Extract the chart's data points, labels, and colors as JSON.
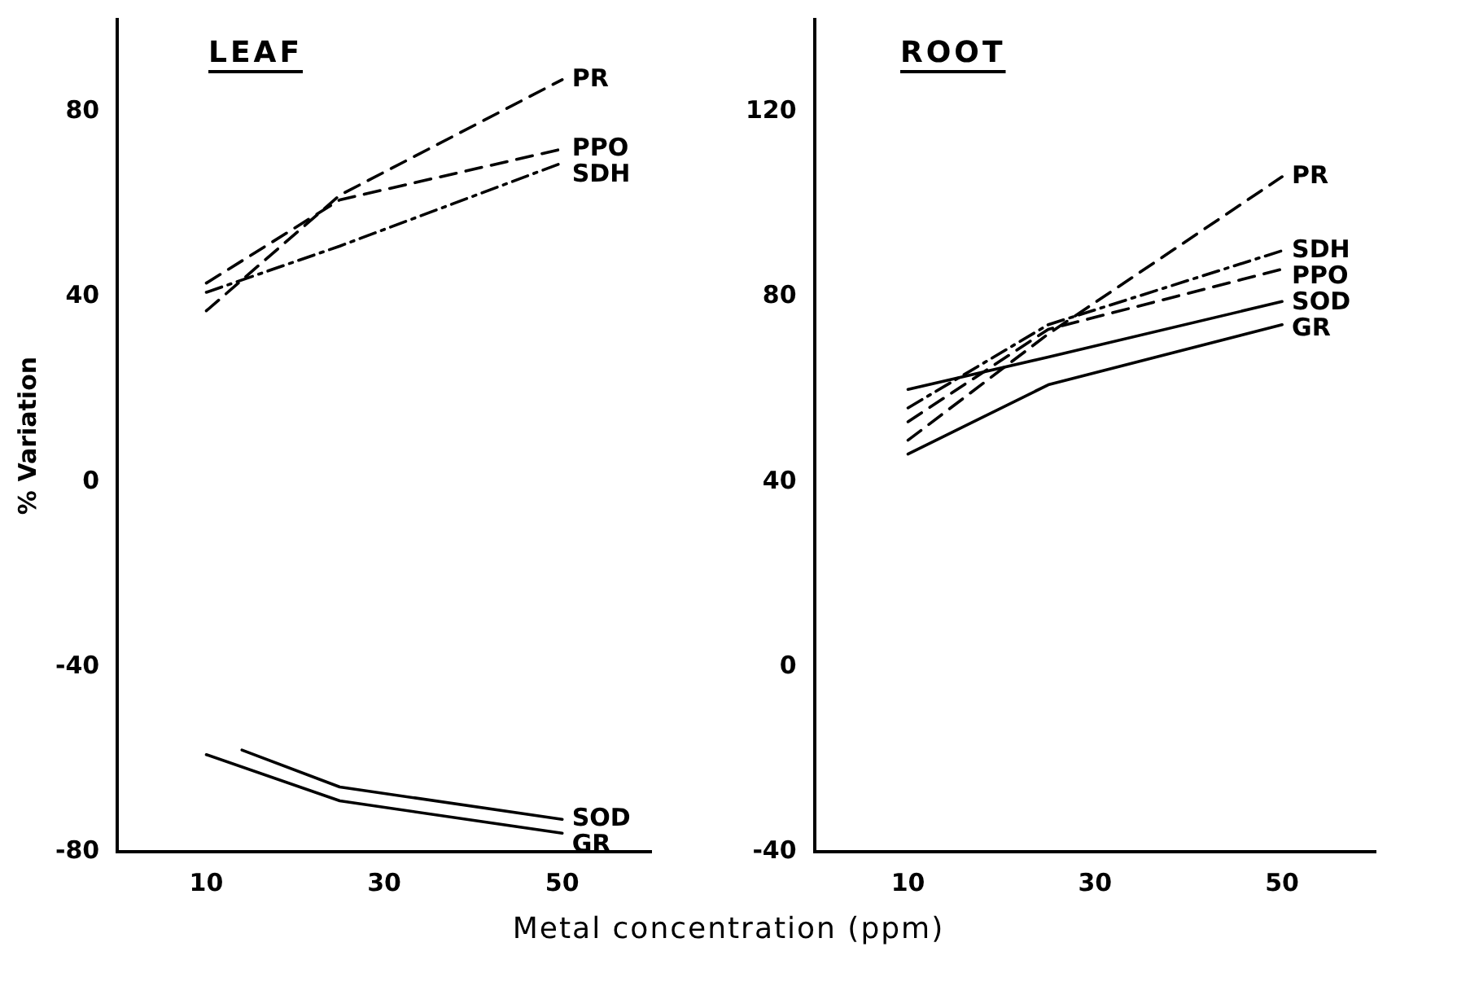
{
  "chart_data": [
    {
      "type": "line",
      "title": "LEAF",
      "ylabel": "% Variation",
      "xlabel": "Metal concentration (ppm)",
      "xlim": [
        0,
        60
      ],
      "xticks": [
        10,
        30,
        50
      ],
      "ylim": [
        -80,
        100
      ],
      "yticks": [
        -80,
        -40,
        0,
        40,
        80
      ],
      "grid": false,
      "legend": false,
      "marker": "none",
      "series": [
        {
          "name": "PR",
          "color": "#000000",
          "line_style": "dashed",
          "x": [
            10,
            25,
            50
          ],
          "values": [
            37,
            62,
            87
          ]
        },
        {
          "name": "PPO",
          "color": "#000000",
          "line_style": "dashed",
          "x": [
            10,
            25,
            50
          ],
          "values": [
            43,
            61,
            72
          ]
        },
        {
          "name": "SDH",
          "color": "#000000",
          "line_style": "dashdot",
          "x": [
            10,
            25,
            50
          ],
          "values": [
            41,
            51,
            69
          ]
        },
        {
          "name": "SOD",
          "color": "#000000",
          "line_style": "solid",
          "x": [
            14,
            25,
            50
          ],
          "values": [
            -58,
            -66,
            -73
          ]
        },
        {
          "name": "GR",
          "color": "#000000",
          "line_style": "solid",
          "x": [
            10,
            25,
            50
          ],
          "values": [
            -59,
            -69,
            -76
          ]
        }
      ]
    },
    {
      "type": "line",
      "title": "ROOT",
      "xlim": [
        0,
        60
      ],
      "xticks": [
        10,
        30,
        50
      ],
      "ylim": [
        -40,
        140
      ],
      "yticks": [
        -40,
        0,
        40,
        80,
        120
      ],
      "grid": false,
      "legend": false,
      "marker": "none",
      "series": [
        {
          "name": "PR",
          "color": "#000000",
          "line_style": "dashed",
          "x": [
            10,
            25,
            50
          ],
          "values": [
            49,
            72,
            106
          ]
        },
        {
          "name": "SDH",
          "color": "#000000",
          "line_style": "dashdot",
          "x": [
            10,
            25,
            50
          ],
          "values": [
            56,
            74,
            90
          ]
        },
        {
          "name": "PPO",
          "color": "#000000",
          "line_style": "dashed",
          "x": [
            10,
            25,
            50
          ],
          "values": [
            53,
            73,
            86
          ]
        },
        {
          "name": "SOD",
          "color": "#000000",
          "line_style": "solid",
          "x": [
            10,
            25,
            50
          ],
          "values": [
            60,
            67,
            79
          ]
        },
        {
          "name": "GR",
          "color": "#000000",
          "line_style": "solid",
          "x": [
            10,
            25,
            50
          ],
          "values": [
            46,
            61,
            74
          ]
        }
      ]
    }
  ]
}
